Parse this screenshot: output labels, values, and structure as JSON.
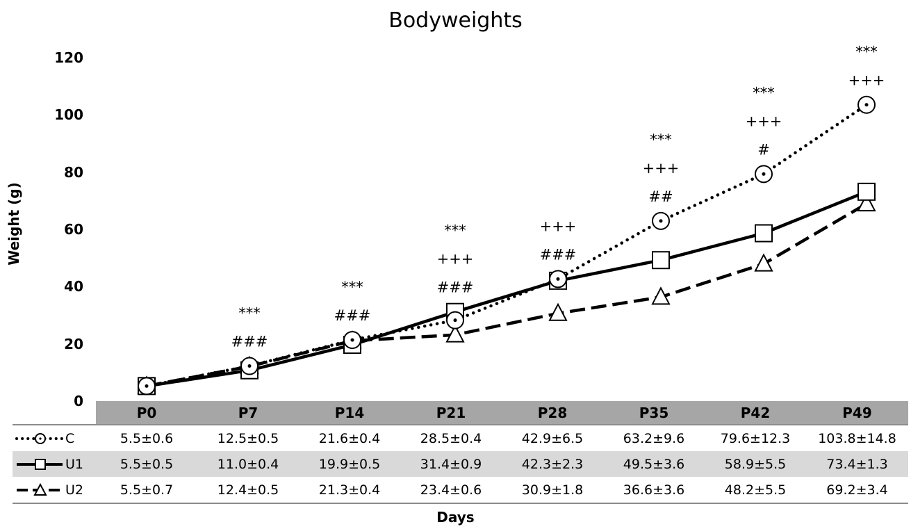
{
  "chart_data": {
    "type": "line",
    "title": "Bodyweights",
    "xlabel": "Days",
    "ylabel": "Weight (g)",
    "ylim": [
      0,
      120
    ],
    "yticks": [
      0,
      20,
      40,
      60,
      80,
      100,
      120
    ],
    "grid": false,
    "categories": [
      "P0",
      "P7",
      "P14",
      "P21",
      "P28",
      "P35",
      "P42",
      "P49"
    ],
    "series": [
      {
        "name": "C",
        "line_style": "dotted",
        "marker": "circle",
        "values": [
          5.5,
          12.5,
          21.6,
          28.5,
          42.9,
          63.2,
          79.6,
          103.8
        ],
        "labels": [
          "5.5±0.6",
          "12.5±0.5",
          "21.6±0.4",
          "28.5±0.4",
          "42.9±6.5",
          "63.2±9.6",
          "79.6±12.3",
          "103.8±14.8"
        ]
      },
      {
        "name": "U1",
        "line_style": "solid",
        "marker": "square",
        "values": [
          5.5,
          11.0,
          19.9,
          31.4,
          42.3,
          49.5,
          58.9,
          73.4
        ],
        "labels": [
          "5.5±0.5",
          "11.0±0.4",
          "19.9±0.5",
          "31.4±0.9",
          "42.3±2.3",
          "49.5±3.6",
          "58.9±5.5",
          "73.4±1.3"
        ]
      },
      {
        "name": "U2",
        "line_style": "dashed",
        "marker": "triangle",
        "values": [
          5.5,
          12.4,
          21.3,
          23.4,
          30.9,
          36.6,
          48.2,
          69.2
        ],
        "labels": [
          "5.5±0.7",
          "12.4±0.5",
          "21.3±0.4",
          "23.4±0.6",
          "30.9±1.8",
          "36.6±3.6",
          "48.2±5.5",
          "69.2±3.4"
        ]
      }
    ],
    "annotations": [
      {
        "category": "P0",
        "lines": []
      },
      {
        "category": "P7",
        "lines": [
          "***",
          "###"
        ]
      },
      {
        "category": "P14",
        "lines": [
          "***",
          "###"
        ]
      },
      {
        "category": "P21",
        "lines": [
          "***",
          "+++",
          "###"
        ]
      },
      {
        "category": "P28",
        "lines": [
          "+++",
          "###"
        ]
      },
      {
        "category": "P35",
        "lines": [
          "***",
          "+++",
          "##"
        ]
      },
      {
        "category": "P42",
        "lines": [
          "***",
          "+++",
          "#"
        ]
      },
      {
        "category": "P49",
        "lines": [
          "***",
          "+++"
        ]
      }
    ],
    "legend_position": "data table, left column",
    "data_table": true
  }
}
